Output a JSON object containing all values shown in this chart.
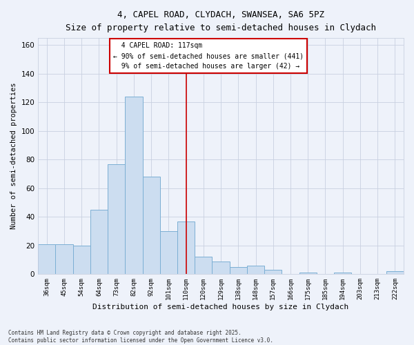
{
  "title1": "4, CAPEL ROAD, CLYDACH, SWANSEA, SA6 5PZ",
  "title2": "Size of property relative to semi-detached houses in Clydach",
  "xlabel": "Distribution of semi-detached houses by size in Clydach",
  "ylabel": "Number of semi-detached properties",
  "categories": [
    "36sqm",
    "45sqm",
    "54sqm",
    "64sqm",
    "73sqm",
    "82sqm",
    "92sqm",
    "101sqm",
    "110sqm",
    "120sqm",
    "129sqm",
    "138sqm",
    "148sqm",
    "157sqm",
    "166sqm",
    "175sqm",
    "185sqm",
    "194sqm",
    "203sqm",
    "213sqm",
    "222sqm"
  ],
  "values": [
    21,
    21,
    20,
    45,
    77,
    124,
    68,
    30,
    37,
    12,
    9,
    5,
    6,
    3,
    0,
    1,
    0,
    1,
    0,
    0,
    2
  ],
  "bar_color": "#ccddf0",
  "bar_edge_color": "#7bafd4",
  "highlight_label": "4 CAPEL ROAD: 117sqm",
  "pct_smaller": "90% of semi-detached houses are smaller (441)",
  "pct_larger": "9% of semi-detached houses are larger (42)",
  "vline_color": "#cc0000",
  "box_edge_color": "#cc0000",
  "ylim": [
    0,
    165
  ],
  "yticks": [
    0,
    20,
    40,
    60,
    80,
    100,
    120,
    140,
    160
  ],
  "footer": "Contains HM Land Registry data © Crown copyright and database right 2025.\nContains public sector information licensed under the Open Government Licence v3.0.",
  "bg_color": "#eef2fa",
  "grid_color": "#c8d0e0"
}
